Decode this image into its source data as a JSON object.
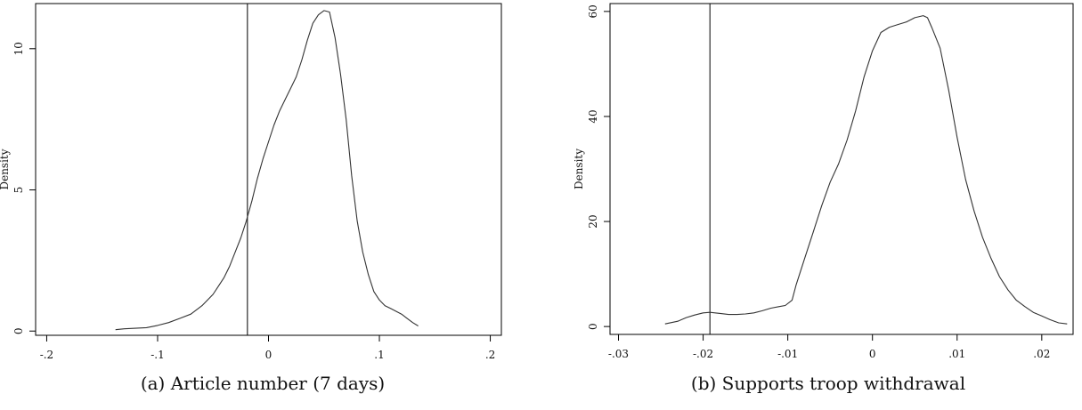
{
  "chart_data": [
    {
      "type": "line",
      "caption": "(a) Article number (7 days)",
      "ylabel": "Density",
      "xlabel": "",
      "xlim": [
        -0.21,
        0.21
      ],
      "ylim": [
        -0.15,
        11.6
      ],
      "x_ticks": [
        {
          "value": -0.2,
          "label": "-.2"
        },
        {
          "value": -0.1,
          "label": "-.1"
        },
        {
          "value": 0,
          "label": "0"
        },
        {
          "value": 0.1,
          "label": ".1"
        },
        {
          "value": 0.2,
          "label": ".2"
        }
      ],
      "y_ticks": [
        {
          "value": 0,
          "label": "0"
        },
        {
          "value": 5,
          "label": "5"
        },
        {
          "value": 10,
          "label": "10"
        }
      ],
      "vline": -0.019,
      "series": [
        {
          "x": [
            -0.138,
            -0.13,
            -0.12,
            -0.11,
            -0.1,
            -0.09,
            -0.08,
            -0.07,
            -0.06,
            -0.05,
            -0.045,
            -0.04,
            -0.035,
            -0.03,
            -0.025,
            -0.02,
            -0.015,
            -0.01,
            -0.005,
            0,
            0.005,
            0.01,
            0.015,
            0.02,
            0.025,
            0.03,
            0.035,
            0.04,
            0.045,
            0.05,
            0.055,
            0.06,
            0.065,
            0.07,
            0.075,
            0.08,
            0.085,
            0.09,
            0.095,
            0.1,
            0.105,
            0.11,
            0.115,
            0.12,
            0.125,
            0.13,
            0.135
          ],
          "y": [
            0.05,
            0.08,
            0.1,
            0.12,
            0.2,
            0.3,
            0.45,
            0.6,
            0.9,
            1.3,
            1.6,
            1.9,
            2.3,
            2.8,
            3.3,
            3.9,
            4.6,
            5.4,
            6.1,
            6.7,
            7.3,
            7.8,
            8.2,
            8.6,
            9.0,
            9.6,
            10.3,
            10.9,
            11.2,
            11.35,
            11.3,
            10.4,
            9.1,
            7.5,
            5.5,
            3.9,
            2.8,
            2.0,
            1.4,
            1.1,
            0.9,
            0.8,
            0.7,
            0.6,
            0.45,
            0.3,
            0.18
          ]
        }
      ]
    },
    {
      "type": "line",
      "caption": "(b) Supports troop withdrawal",
      "ylabel": "Density",
      "xlabel": "",
      "xlim": [
        -0.031,
        0.0237
      ],
      "ylim": [
        -1.5,
        61.5
      ],
      "x_ticks": [
        {
          "value": -0.03,
          "label": "-.03"
        },
        {
          "value": -0.02,
          "label": "-.02"
        },
        {
          "value": -0.01,
          "label": "-.01"
        },
        {
          "value": 0,
          "label": "0"
        },
        {
          "value": 0.01,
          "label": ".01"
        },
        {
          "value": 0.02,
          "label": ".02"
        }
      ],
      "y_ticks": [
        {
          "value": 0,
          "label": "0"
        },
        {
          "value": 20,
          "label": "20"
        },
        {
          "value": 40,
          "label": "40"
        },
        {
          "value": 60,
          "label": "60"
        }
      ],
      "vline": -0.0192,
      "series": [
        {
          "x": [
            -0.0245,
            -0.023,
            -0.022,
            -0.021,
            -0.02,
            -0.0192,
            -0.018,
            -0.017,
            -0.016,
            -0.015,
            -0.014,
            -0.013,
            -0.012,
            -0.011,
            -0.0103,
            -0.0095,
            -0.009,
            -0.008,
            -0.007,
            -0.006,
            -0.005,
            -0.004,
            -0.003,
            -0.002,
            -0.001,
            0,
            0.001,
            0.002,
            0.003,
            0.004,
            0.005,
            0.006,
            0.0065,
            0.007,
            0.008,
            0.009,
            0.01,
            0.011,
            0.012,
            0.013,
            0.014,
            0.015,
            0.016,
            0.017,
            0.018,
            0.019,
            0.02,
            0.021,
            0.022,
            0.023
          ],
          "y": [
            0.5,
            1.0,
            1.7,
            2.2,
            2.6,
            2.7,
            2.5,
            2.3,
            2.3,
            2.4,
            2.6,
            3.0,
            3.5,
            3.8,
            4.0,
            5.0,
            8.0,
            13.0,
            18.0,
            23.0,
            27.5,
            31.0,
            35.5,
            41.0,
            47.5,
            52.5,
            56.0,
            57.0,
            57.5,
            58.0,
            58.8,
            59.2,
            58.8,
            57.0,
            53.0,
            45.0,
            36.0,
            28.0,
            22.0,
            17.0,
            13.0,
            9.5,
            7.0,
            5.0,
            3.8,
            2.7,
            2.0,
            1.3,
            0.7,
            0.5
          ]
        }
      ]
    }
  ]
}
